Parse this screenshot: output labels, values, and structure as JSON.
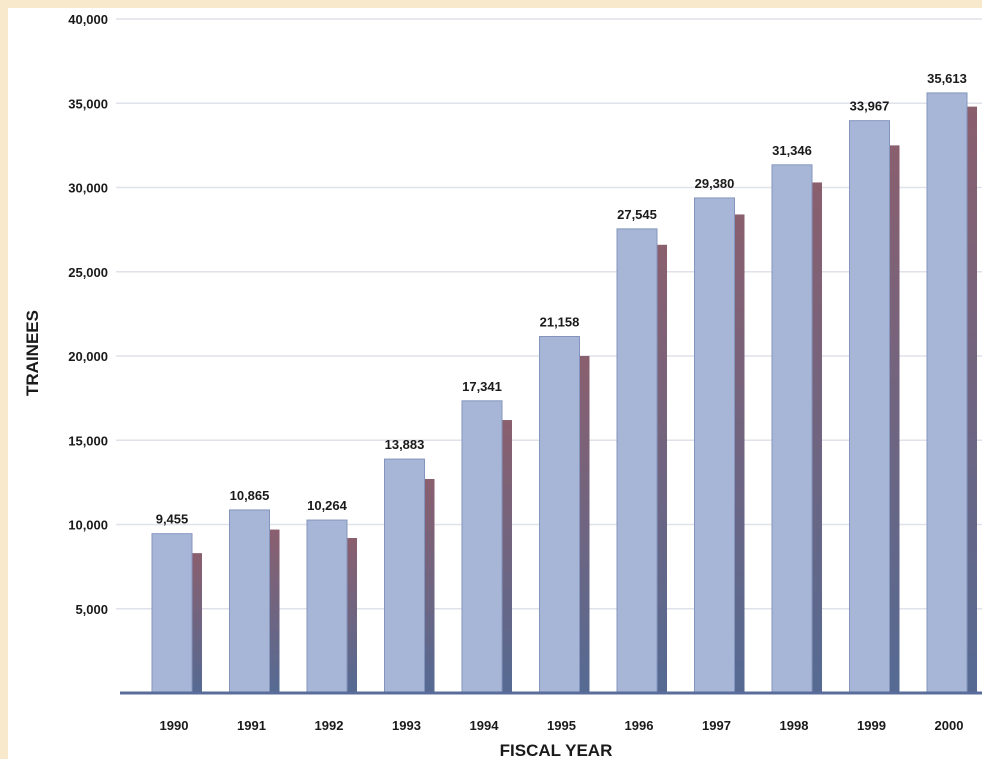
{
  "chart_data": {
    "type": "bar",
    "title": "",
    "xlabel": "FISCAL YEAR",
    "ylabel": "TRAINEES",
    "categories": [
      "1990",
      "1991",
      "1992",
      "1993",
      "1994",
      "1995",
      "1996",
      "1997",
      "1998",
      "1999",
      "2000"
    ],
    "series": [
      {
        "values": [
          9455,
          10865,
          10264,
          13883,
          17341,
          21158,
          27545,
          29380,
          31346,
          33967,
          35613
        ],
        "labels": [
          "9,455",
          "10,865",
          "10,264",
          "13,883",
          "17,341",
          "21,158",
          "27,545",
          "29,380",
          "31,346",
          "33,967",
          "35,613"
        ]
      }
    ],
    "shadow_values": [
      8300,
      9700,
      9200,
      12700,
      16200,
      20000,
      26600,
      28400,
      30300,
      32500,
      34800
    ],
    "ylim": [
      0,
      40000
    ],
    "yticks": [
      5000,
      10000,
      15000,
      20000,
      25000,
      30000,
      35000,
      40000
    ],
    "yticklabels": [
      "5,000",
      "10,000",
      "15,000",
      "20,000",
      "25,000",
      "30,000",
      "35,000",
      "40,000"
    ],
    "grid": true,
    "colors": {
      "bar": "#a7b6d6",
      "bar_edge": "#8495bd",
      "shadow_top": "#8a5f6e",
      "shadow_bottom": "#556a93",
      "gridline": "#dfe2ea",
      "axis": "#5a6c9a",
      "background": "#ffffff",
      "frame": "#f8e8cc"
    }
  }
}
